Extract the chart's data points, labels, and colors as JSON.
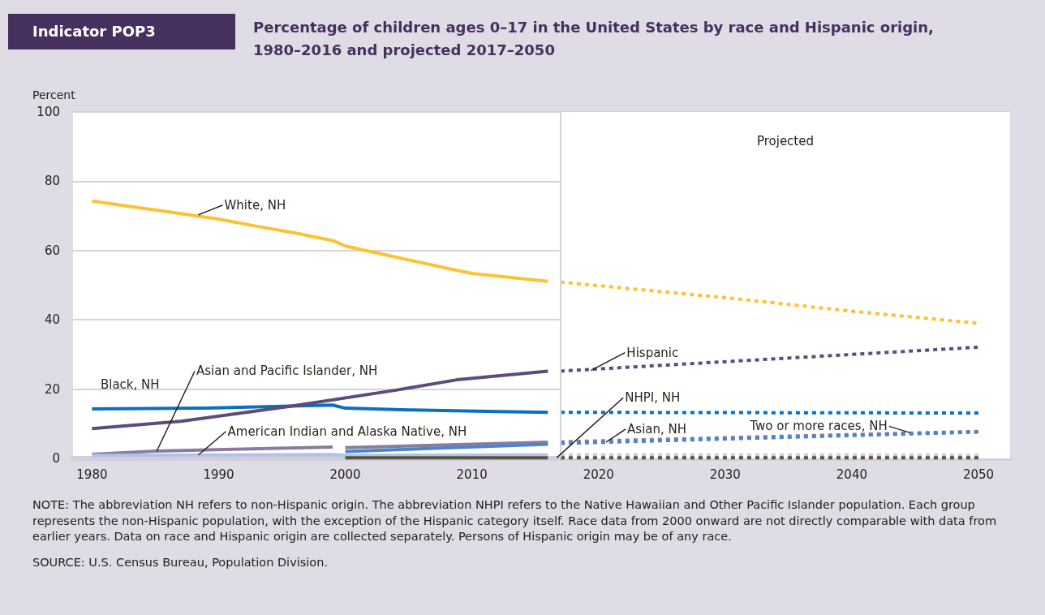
{
  "chart_data": {
    "type": "line",
    "subtitle": "Indicator POP3",
    "title": "Percentage of children ages 0–17 in the United States by race and Hispanic origin, 1980–2016 and projected 2017–2050",
    "ylabel": "Percent",
    "xlim": [
      1978.5,
      2052.5
    ],
    "xticks": [
      1980,
      1990,
      2000,
      2010,
      2020,
      2030,
      2040,
      2050
    ],
    "ylim": [
      0,
      100
    ],
    "yticks": [
      0,
      20,
      40,
      60,
      80,
      100
    ],
    "grid": "y",
    "marker": "none",
    "legend": false,
    "series": [
      {
        "color": "#fdc232",
        "x": [
          1980,
          1983,
          1985,
          1989,
          1990,
          1993,
          1996,
          1999,
          2000,
          2003,
          2008,
          2010,
          2016
        ],
        "values": [
          74.3,
          72.7,
          71.7,
          69.6,
          69.1,
          67.0,
          65.1,
          62.9,
          61.3,
          58.9,
          54.9,
          53.4,
          51.1
        ]
      },
      {
        "color": "#fdc232",
        "line_style": "dotted",
        "x": [
          2017,
          2030,
          2040,
          2050
        ],
        "values": [
          50.9,
          46.4,
          42.5,
          39.0
        ]
      },
      {
        "color": "#0a70bf",
        "x": [
          1980,
          1989,
          1997,
          1999,
          2000,
          2005,
          2012,
          2016
        ],
        "values": [
          14.3,
          14.5,
          15.2,
          15.4,
          14.5,
          14.0,
          13.5,
          13.3
        ]
      },
      {
        "color": "#0a70bf",
        "line_style": "dotted",
        "x": [
          2017,
          2050
        ],
        "values": [
          13.3,
          13.1
        ]
      },
      {
        "color": "#5e4b7c",
        "x": [
          1980,
          1987,
          1996,
          2004,
          2009,
          2016
        ],
        "values": [
          8.6,
          10.7,
          15.2,
          19.7,
          22.8,
          25.2
        ]
      },
      {
        "color": "#5e4b7c",
        "line_style": "dotted",
        "x": [
          2017,
          2050
        ],
        "values": [
          25.2,
          32.1
        ]
      },
      {
        "color": "#8b7ba1",
        "x": [
          1980,
          1985,
          1999
        ],
        "values": [
          1.2,
          2.1,
          3.3
        ]
      },
      {
        "color": "#adc3e8",
        "x": [
          1980,
          1990,
          1999,
          2000,
          2016
        ],
        "values": [
          0.9,
          1.0,
          1.1,
          0.9,
          1.0
        ]
      },
      {
        "color": "#c9c9cf",
        "line_style": "dotted",
        "x": [
          2017,
          2050
        ],
        "values": [
          1.0,
          0.9
        ]
      },
      {
        "color": "#8b7ba1",
        "x": [
          2000,
          2016
        ],
        "values": [
          3.1,
          4.7
        ]
      },
      {
        "color": "#8b7ba1",
        "line_style": "dotted",
        "x": [
          2017,
          2050
        ],
        "values": [
          4.8,
          7.8
        ]
      },
      {
        "color": "#4a86cc",
        "x": [
          2000,
          2016
        ],
        "values": [
          2.0,
          4.1
        ]
      },
      {
        "color": "#4a86cc",
        "line_style": "dotted",
        "x": [
          2017,
          2050
        ],
        "values": [
          4.3,
          7.6
        ]
      },
      {
        "color": "#5a5240",
        "x": [
          2000,
          2016
        ],
        "values": [
          0.2,
          0.2
        ]
      },
      {
        "color": "#5a5240",
        "line_style": "dotted",
        "x": [
          2017,
          2050
        ],
        "values": [
          0.2,
          0.2
        ]
      }
    ],
    "ref_lines": [
      {
        "axis": "x",
        "value": 2017,
        "color": "#d6d2dd"
      }
    ],
    "bands": [
      {
        "axis": "x",
        "from": 2017,
        "to": 2052.5,
        "label": "Projected",
        "color": "#ffffff"
      }
    ],
    "annotations": [
      {
        "text": "White, NH",
        "x": 1988.4,
        "y": 70.3
      },
      {
        "text": "Black, NH",
        "x": 1983,
        "y": 14.4
      },
      {
        "text": "Asian and Pacific Islander, NH",
        "x": 1985.1,
        "y": 2.0
      },
      {
        "text": "American Indian and Alaska Native, NH",
        "x": 1988.4,
        "y": 1.0
      },
      {
        "text": "Hispanic",
        "x": 2019.4,
        "y": 25.4
      },
      {
        "text": "NHPI, NH",
        "x": 2016.7,
        "y": 0.2
      },
      {
        "text": "Asian, NH",
        "x": 2020.6,
        "y": 4.7
      },
      {
        "text": "Two or more races, NH",
        "x": 2044.6,
        "y": 7.4
      },
      "NOTE: The abbreviation NH refers to non-Hispanic origin. The abbreviation NHPI refers to the Native Hawaiian and Other Pacific Islander population. Each group represents the non-Hispanic population, with the exception of the Hispanic category itself. Race data from 2000 onward are not directly comparable with data from earlier years. Data on race and Hispanic origin are collected separately. Persons of Hispanic origin may be of any race.",
      "SOURCE: U.S. Census Bureau, Population Division."
    ]
  }
}
